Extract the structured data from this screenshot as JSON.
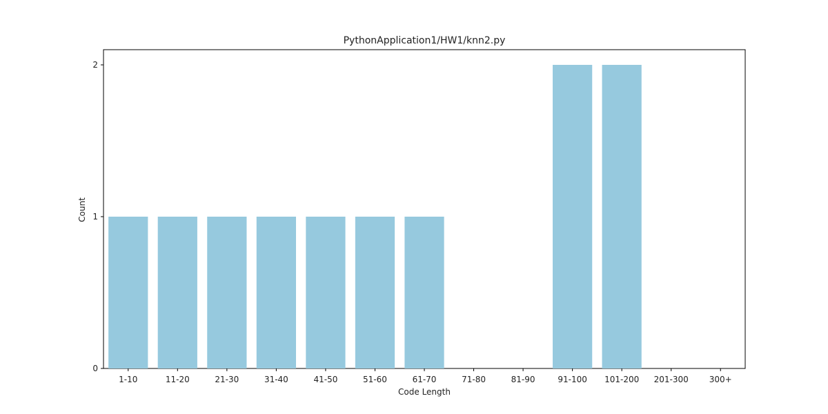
{
  "chart_data": {
    "type": "bar",
    "title": "PythonApplication1/HW1/knn2.py",
    "xlabel": "Code Length",
    "ylabel": "Count",
    "categories": [
      "1-10",
      "11-20",
      "21-30",
      "31-40",
      "41-50",
      "51-60",
      "61-70",
      "71-80",
      "81-90",
      "91-100",
      "101-200",
      "201-300",
      "300+"
    ],
    "values": [
      1,
      1,
      1,
      1,
      1,
      1,
      1,
      0,
      0,
      2,
      2,
      0,
      0
    ],
    "yticks": [
      "0",
      "1",
      "2"
    ],
    "ylim": [
      0,
      2.1
    ],
    "grid": false,
    "bar_color": "#96c9de"
  }
}
